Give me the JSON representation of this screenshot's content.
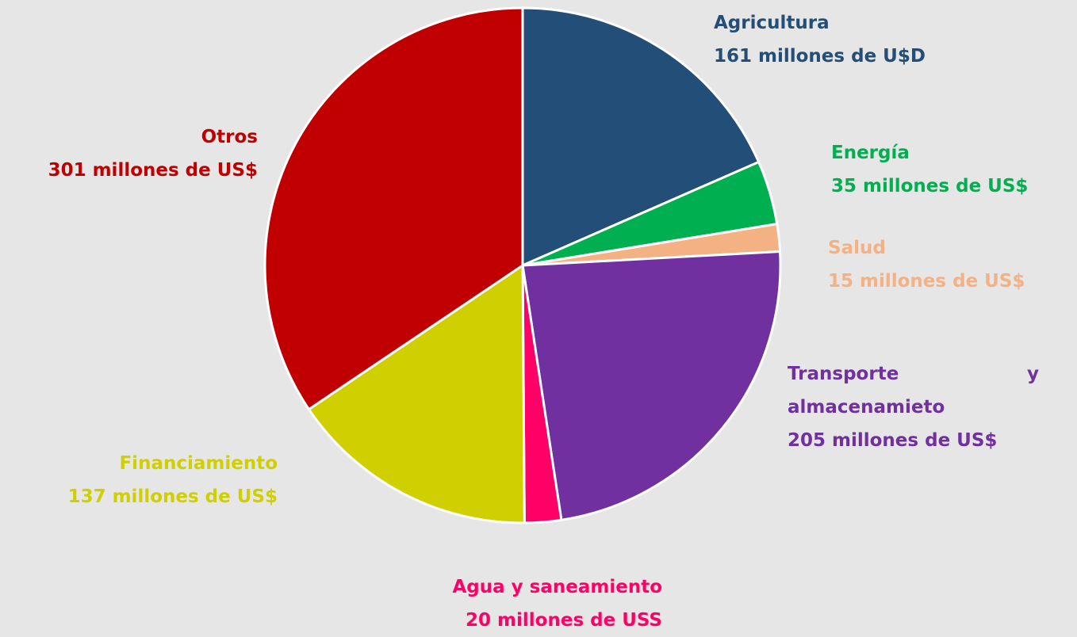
{
  "chart_data": {
    "type": "pie",
    "categories": [
      "Agricultura",
      "Energía",
      "Salud",
      "Transporte y almacenamieto",
      "Agua y saneamiento",
      "Financiamiento",
      "Otros"
    ],
    "values": [
      161,
      35,
      15,
      205,
      20,
      137,
      301
    ],
    "value_labels": [
      "161 millones de U$D",
      "35 millones de US$",
      "15 millones de US$",
      "205 millones de US$",
      "20 millones de USS",
      "137 millones de US$",
      "301 millones de US$"
    ],
    "colors": [
      "#234e78",
      "#00b050",
      "#f4b183",
      "#7030a0",
      "#ff0066",
      "#d0cf00",
      "#c00000"
    ]
  }
}
